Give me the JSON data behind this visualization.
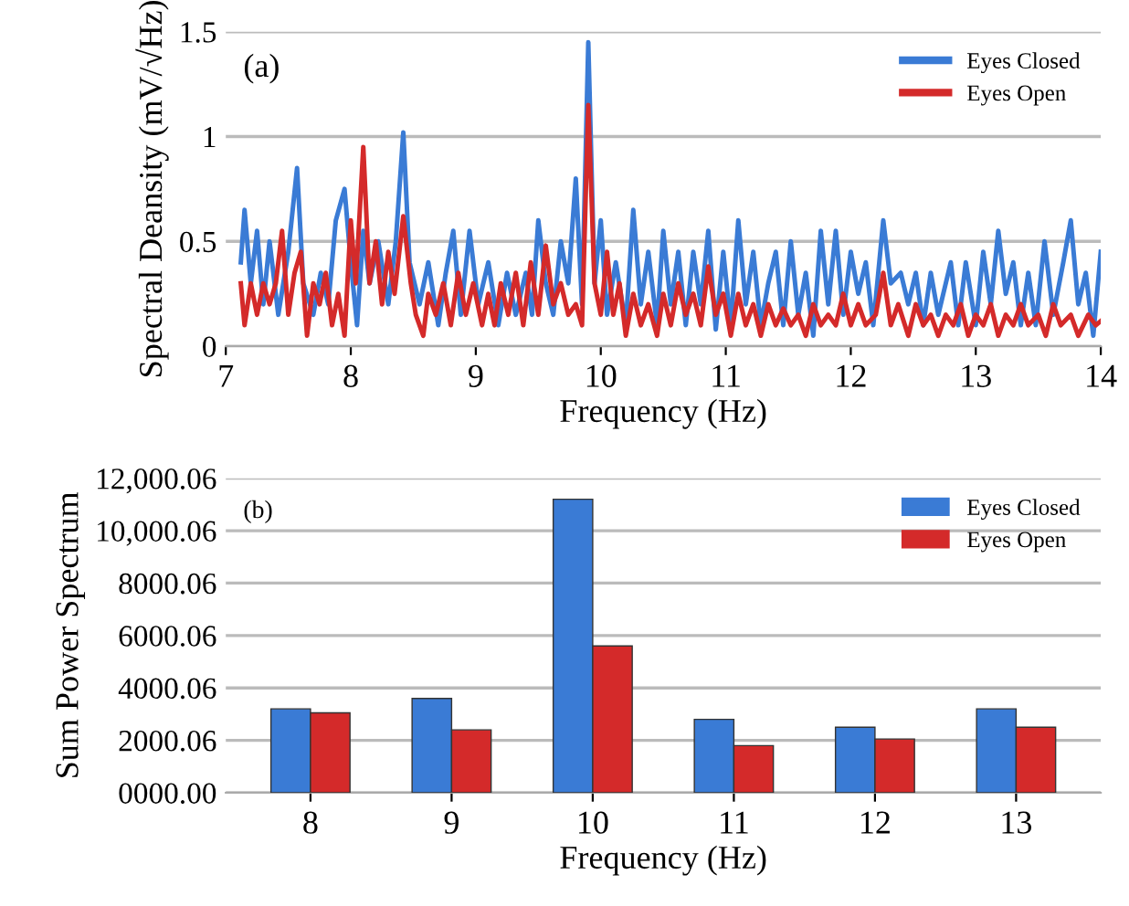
{
  "chart_data": [
    {
      "type": "line",
      "ylabel": "Spectral Deansity (mV/√Hz)",
      "xlabel": "Frequency (Hz)",
      "annotations": [
        "(a)"
      ],
      "xlim": [
        7,
        14
      ],
      "xticks": [
        7,
        8,
        9,
        10,
        11,
        12,
        13,
        14
      ],
      "ylim": [
        0,
        1.5
      ],
      "yticks": [
        0,
        0.5,
        1,
        1.5
      ],
      "grid": "y",
      "legend": "top right",
      "marker": "none",
      "line_style": "solid",
      "series": [
        {
          "name": "Eyes Closed",
          "color": "#3a7bd5",
          "x": [
            7.12,
            7.15,
            7.2,
            7.25,
            7.3,
            7.35,
            7.42,
            7.5,
            7.57,
            7.62,
            7.7,
            7.76,
            7.82,
            7.88,
            7.95,
            8.0,
            8.05,
            8.1,
            8.15,
            8.22,
            8.3,
            8.36,
            8.42,
            8.47,
            8.55,
            8.62,
            8.7,
            8.76,
            8.82,
            8.88,
            8.95,
            9.02,
            9.1,
            9.18,
            9.25,
            9.32,
            9.4,
            9.45,
            9.5,
            9.56,
            9.62,
            9.68,
            9.74,
            9.8,
            9.85,
            9.9,
            9.95,
            10.0,
            10.05,
            10.12,
            10.2,
            10.26,
            10.32,
            10.38,
            10.45,
            10.5,
            10.56,
            10.62,
            10.68,
            10.74,
            10.8,
            10.86,
            10.92,
            10.98,
            11.04,
            11.1,
            11.16,
            11.22,
            11.28,
            11.34,
            11.4,
            11.46,
            11.52,
            11.58,
            11.64,
            11.7,
            11.76,
            11.82,
            11.88,
            11.94,
            12.0,
            12.06,
            12.12,
            12.18,
            12.26,
            12.32,
            12.4,
            12.46,
            12.52,
            12.58,
            12.64,
            12.7,
            12.8,
            12.86,
            12.92,
            13.0,
            13.06,
            13.12,
            13.18,
            13.24,
            13.3,
            13.36,
            13.42,
            13.48,
            13.55,
            13.62,
            13.7,
            13.76,
            13.82,
            13.88,
            13.94,
            14.0
          ],
          "values": [
            0.4,
            0.65,
            0.3,
            0.55,
            0.2,
            0.5,
            0.15,
            0.45,
            0.85,
            0.3,
            0.15,
            0.35,
            0.2,
            0.6,
            0.75,
            0.4,
            0.1,
            0.55,
            0.3,
            0.5,
            0.2,
            0.5,
            1.02,
            0.4,
            0.2,
            0.4,
            0.1,
            0.35,
            0.55,
            0.15,
            0.55,
            0.2,
            0.4,
            0.1,
            0.35,
            0.15,
            0.35,
            0.15,
            0.6,
            0.3,
            0.15,
            0.5,
            0.3,
            0.8,
            0.2,
            1.45,
            0.3,
            0.6,
            0.15,
            0.4,
            0.1,
            0.65,
            0.2,
            0.45,
            0.1,
            0.55,
            0.2,
            0.45,
            0.1,
            0.45,
            0.2,
            0.55,
            0.08,
            0.45,
            0.1,
            0.6,
            0.2,
            0.45,
            0.1,
            0.3,
            0.45,
            0.1,
            0.5,
            0.15,
            0.35,
            0.05,
            0.55,
            0.2,
            0.55,
            0.15,
            0.45,
            0.25,
            0.4,
            0.1,
            0.6,
            0.3,
            0.35,
            0.2,
            0.35,
            0.1,
            0.35,
            0.15,
            0.4,
            0.1,
            0.4,
            0.1,
            0.45,
            0.2,
            0.55,
            0.25,
            0.4,
            0.1,
            0.35,
            0.1,
            0.5,
            0.15,
            0.4,
            0.6,
            0.2,
            0.35,
            0.05,
            0.45
          ]
        },
        {
          "name": "Eyes Open",
          "color": "#d42a2a",
          "x": [
            7.12,
            7.15,
            7.2,
            7.25,
            7.3,
            7.35,
            7.4,
            7.45,
            7.5,
            7.55,
            7.6,
            7.65,
            7.7,
            7.75,
            7.8,
            7.85,
            7.9,
            7.95,
            8.0,
            8.04,
            8.1,
            8.15,
            8.2,
            8.25,
            8.3,
            8.35,
            8.42,
            8.48,
            8.52,
            8.58,
            8.62,
            8.68,
            8.74,
            8.8,
            8.86,
            8.92,
            8.98,
            9.05,
            9.1,
            9.15,
            9.2,
            9.26,
            9.32,
            9.38,
            9.44,
            9.5,
            9.56,
            9.62,
            9.68,
            9.74,
            9.8,
            9.85,
            9.9,
            9.95,
            10.0,
            10.05,
            10.1,
            10.15,
            10.2,
            10.26,
            10.32,
            10.38,
            10.45,
            10.5,
            10.56,
            10.62,
            10.68,
            10.74,
            10.8,
            10.86,
            10.92,
            10.98,
            11.04,
            11.1,
            11.16,
            11.22,
            11.28,
            11.34,
            11.4,
            11.46,
            11.52,
            11.58,
            11.64,
            11.7,
            11.76,
            11.82,
            11.88,
            11.94,
            12.0,
            12.06,
            12.12,
            12.2,
            12.26,
            12.32,
            12.38,
            12.46,
            12.52,
            12.58,
            12.64,
            12.7,
            12.76,
            12.82,
            12.88,
            12.94,
            13.0,
            13.06,
            13.12,
            13.18,
            13.24,
            13.3,
            13.36,
            13.42,
            13.5,
            13.56,
            13.62,
            13.68,
            13.76,
            13.82,
            13.9,
            13.96,
            14.0
          ],
          "values": [
            0.3,
            0.1,
            0.3,
            0.15,
            0.3,
            0.2,
            0.3,
            0.55,
            0.15,
            0.35,
            0.45,
            0.05,
            0.3,
            0.2,
            0.35,
            0.1,
            0.25,
            0.05,
            0.6,
            0.3,
            0.95,
            0.3,
            0.5,
            0.2,
            0.45,
            0.25,
            0.62,
            0.3,
            0.15,
            0.05,
            0.25,
            0.15,
            0.3,
            0.1,
            0.35,
            0.15,
            0.3,
            0.1,
            0.25,
            0.1,
            0.3,
            0.15,
            0.35,
            0.1,
            0.4,
            0.15,
            0.48,
            0.2,
            0.3,
            0.15,
            0.2,
            0.1,
            1.15,
            0.3,
            0.15,
            0.45,
            0.15,
            0.3,
            0.05,
            0.25,
            0.1,
            0.2,
            0.05,
            0.25,
            0.1,
            0.3,
            0.15,
            0.25,
            0.1,
            0.38,
            0.15,
            0.25,
            0.05,
            0.25,
            0.1,
            0.2,
            0.05,
            0.2,
            0.1,
            0.18,
            0.1,
            0.15,
            0.05,
            0.2,
            0.1,
            0.15,
            0.1,
            0.25,
            0.1,
            0.2,
            0.1,
            0.15,
            0.35,
            0.1,
            0.2,
            0.05,
            0.2,
            0.1,
            0.15,
            0.05,
            0.15,
            0.1,
            0.2,
            0.05,
            0.15,
            0.1,
            0.2,
            0.05,
            0.15,
            0.1,
            0.2,
            0.1,
            0.15,
            0.05,
            0.2,
            0.1,
            0.15,
            0.05,
            0.15,
            0.1,
            0.12
          ]
        }
      ]
    },
    {
      "type": "bar",
      "ylabel": "Sum Power Spectrum",
      "xlabel": "Frequency (Hz)",
      "annotations": [
        "(b)"
      ],
      "categories": [
        "8",
        "9",
        "10",
        "11",
        "12",
        "13"
      ],
      "ylim": [
        0,
        12000.06
      ],
      "yticks": [
        {
          "value": 0,
          "label": "0000.00"
        },
        {
          "value": 2000.06,
          "label": "2000.06"
        },
        {
          "value": 4000.06,
          "label": "4000.06"
        },
        {
          "value": 6000.06,
          "label": "6000.06"
        },
        {
          "value": 8000.06,
          "label": "8000.06"
        },
        {
          "value": 10000.06,
          "label": "10,000.06"
        },
        {
          "value": 12000.06,
          "label": "12,000.06"
        }
      ],
      "grid": "y",
      "legend": "top right",
      "series": [
        {
          "name": "Eyes Closed",
          "color": "#3a7bd5",
          "values": [
            3200,
            3600,
            11200,
            2800,
            2500,
            3200
          ]
        },
        {
          "name": "Eyes Open",
          "color": "#d42a2a",
          "values": [
            3050,
            2400,
            5600,
            1800,
            2050,
            2500
          ]
        }
      ]
    }
  ]
}
